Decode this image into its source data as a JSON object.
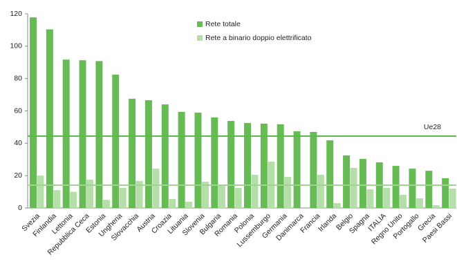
{
  "chart_data": {
    "type": "bar",
    "categories": [
      "Svezia",
      "Finlandia",
      "Lettonia",
      "Repubblica Ceca",
      "Estonia",
      "Ungheria",
      "Slovacchia",
      "Austria",
      "Croazia",
      "Lituania",
      "Slovenia",
      "Bulgaria",
      "Romania",
      "Polonia",
      "Lussemburgo",
      "Germania",
      "Danimarca",
      "Francia",
      "Irlanda",
      "Belgio",
      "Spagna",
      "ITALIA",
      "Regno Unito",
      "Portogallo",
      "Grecia",
      "Paesi Bassi"
    ],
    "series": [
      {
        "name": "Rete totale",
        "color": "#66bb55",
        "values": [
          117.8,
          110.4,
          91.7,
          91.3,
          90.8,
          82.4,
          67.5,
          66.6,
          64,
          59.4,
          58.9,
          56,
          53.8,
          52.5,
          52.1,
          51.7,
          47.4,
          47,
          41.8,
          32.5,
          30.3,
          28.2,
          26,
          24.3,
          23,
          18.4
        ]
      },
      {
        "name": "Rete a binario doppio elettrificato",
        "color": "#b5dfa8",
        "values": [
          20,
          11,
          10,
          17.5,
          5,
          12.4,
          16.7,
          24.3,
          5.5,
          3.8,
          16.2,
          14,
          12.4,
          20.5,
          28.6,
          19.2,
          0,
          20.5,
          3,
          24.8,
          11.5,
          12.4,
          8.1,
          6,
          1.7,
          12
        ]
      }
    ],
    "reference_lines": [
      {
        "value": 44.4,
        "label": "Ue28",
        "color": "#5cb848"
      },
      {
        "value": 14.1,
        "color": "#9fd48f"
      }
    ],
    "ylim": [
      0,
      120
    ],
    "yticks": [
      0,
      20,
      40,
      60,
      80,
      100,
      120
    ]
  }
}
